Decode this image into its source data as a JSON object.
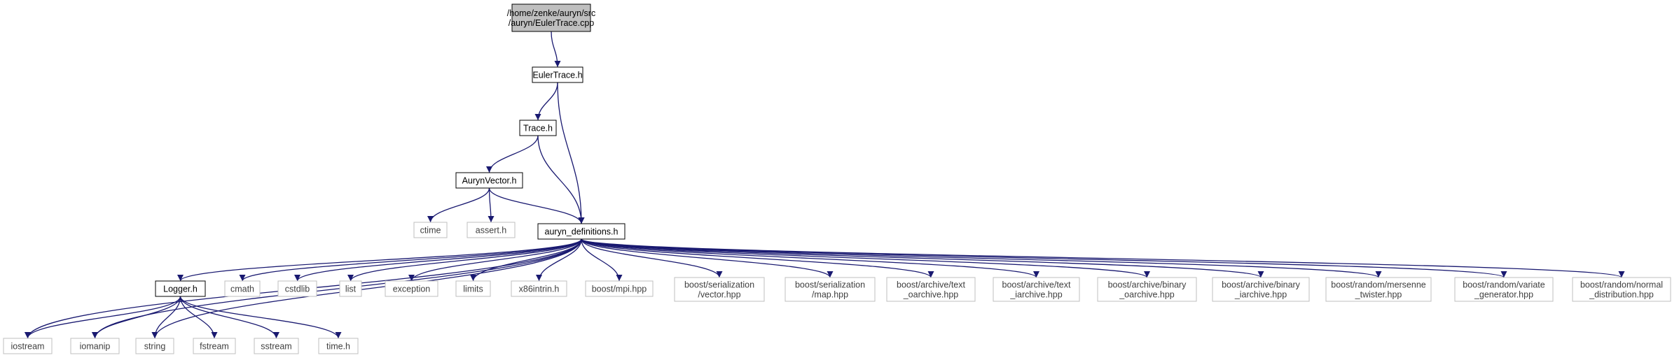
{
  "graph": {
    "colors": {
      "edge": "#191970",
      "highlight_fill": "#bfbfbf",
      "documented_border": "#000000",
      "external_border": "#bfbfbf",
      "external_text": "#404040",
      "text": "#000000"
    },
    "nodes": [
      {
        "id": "root",
        "lines": [
          "/home/zenke/auryn/src",
          "/auryn/EulerTrace.cpp"
        ],
        "kind": "highlight"
      },
      {
        "id": "eulertrace_h",
        "lines": [
          "EulerTrace.h"
        ],
        "kind": "documented"
      },
      {
        "id": "trace_h",
        "lines": [
          "Trace.h"
        ],
        "kind": "documented"
      },
      {
        "id": "aurynvector_h",
        "lines": [
          "AurynVector.h"
        ],
        "kind": "documented"
      },
      {
        "id": "ctime",
        "lines": [
          "ctime"
        ],
        "kind": "external"
      },
      {
        "id": "assert_h",
        "lines": [
          "assert.h"
        ],
        "kind": "external"
      },
      {
        "id": "auryn_definitions_h",
        "lines": [
          "auryn_definitions.h"
        ],
        "kind": "documented"
      },
      {
        "id": "logger_h",
        "lines": [
          "Logger.h"
        ],
        "kind": "documented"
      },
      {
        "id": "cmath",
        "lines": [
          "cmath"
        ],
        "kind": "external"
      },
      {
        "id": "cstdlib",
        "lines": [
          "cstdlib"
        ],
        "kind": "external"
      },
      {
        "id": "list",
        "lines": [
          "list"
        ],
        "kind": "external"
      },
      {
        "id": "exception",
        "lines": [
          "exception"
        ],
        "kind": "external"
      },
      {
        "id": "limits",
        "lines": [
          "limits"
        ],
        "kind": "external"
      },
      {
        "id": "x86intrin_h",
        "lines": [
          "x86intrin.h"
        ],
        "kind": "external"
      },
      {
        "id": "boost_mpi",
        "lines": [
          "boost/mpi.hpp"
        ],
        "kind": "external"
      },
      {
        "id": "boost_ser_vector",
        "lines": [
          "boost/serialization",
          "/vector.hpp"
        ],
        "kind": "external"
      },
      {
        "id": "boost_ser_map",
        "lines": [
          "boost/serialization",
          "/map.hpp"
        ],
        "kind": "external"
      },
      {
        "id": "boost_text_oarchive",
        "lines": [
          "boost/archive/text",
          "_oarchive.hpp"
        ],
        "kind": "external"
      },
      {
        "id": "boost_text_iarchive",
        "lines": [
          "boost/archive/text",
          "_iarchive.hpp"
        ],
        "kind": "external"
      },
      {
        "id": "boost_binary_oarchive",
        "lines": [
          "boost/archive/binary",
          "_oarchive.hpp"
        ],
        "kind": "external"
      },
      {
        "id": "boost_binary_iarchive",
        "lines": [
          "boost/archive/binary",
          "_iarchive.hpp"
        ],
        "kind": "external"
      },
      {
        "id": "boost_mersenne",
        "lines": [
          "boost/random/mersenne",
          "_twister.hpp"
        ],
        "kind": "external"
      },
      {
        "id": "boost_variate",
        "lines": [
          "boost/random/variate",
          "_generator.hpp"
        ],
        "kind": "external"
      },
      {
        "id": "boost_normal",
        "lines": [
          "boost/random/normal",
          "_distribution.hpp"
        ],
        "kind": "external"
      },
      {
        "id": "iostream",
        "lines": [
          "iostream"
        ],
        "kind": "external"
      },
      {
        "id": "iomanip",
        "lines": [
          "iomanip"
        ],
        "kind": "external"
      },
      {
        "id": "string",
        "lines": [
          "string"
        ],
        "kind": "external"
      },
      {
        "id": "fstream",
        "lines": [
          "fstream"
        ],
        "kind": "external"
      },
      {
        "id": "sstream",
        "lines": [
          "sstream"
        ],
        "kind": "external"
      },
      {
        "id": "time_h",
        "lines": [
          "time.h"
        ],
        "kind": "external"
      }
    ],
    "edges": [
      [
        "root",
        "eulertrace_h"
      ],
      [
        "eulertrace_h",
        "trace_h"
      ],
      [
        "eulertrace_h",
        "auryn_definitions_h"
      ],
      [
        "trace_h",
        "aurynvector_h"
      ],
      [
        "trace_h",
        "auryn_definitions_h"
      ],
      [
        "aurynvector_h",
        "ctime"
      ],
      [
        "aurynvector_h",
        "assert_h"
      ],
      [
        "aurynvector_h",
        "auryn_definitions_h"
      ],
      [
        "auryn_definitions_h",
        "iostream"
      ],
      [
        "auryn_definitions_h",
        "iomanip"
      ],
      [
        "auryn_definitions_h",
        "string"
      ],
      [
        "auryn_definitions_h",
        "logger_h"
      ],
      [
        "auryn_definitions_h",
        "cmath"
      ],
      [
        "auryn_definitions_h",
        "cstdlib"
      ],
      [
        "auryn_definitions_h",
        "list"
      ],
      [
        "auryn_definitions_h",
        "exception"
      ],
      [
        "auryn_definitions_h",
        "limits"
      ],
      [
        "auryn_definitions_h",
        "x86intrin_h"
      ],
      [
        "auryn_definitions_h",
        "boost_mpi"
      ],
      [
        "auryn_definitions_h",
        "boost_ser_vector"
      ],
      [
        "auryn_definitions_h",
        "boost_ser_map"
      ],
      [
        "auryn_definitions_h",
        "boost_text_oarchive"
      ],
      [
        "auryn_definitions_h",
        "boost_text_iarchive"
      ],
      [
        "auryn_definitions_h",
        "boost_binary_oarchive"
      ],
      [
        "auryn_definitions_h",
        "boost_binary_iarchive"
      ],
      [
        "auryn_definitions_h",
        "boost_mersenne"
      ],
      [
        "auryn_definitions_h",
        "boost_variate"
      ],
      [
        "auryn_definitions_h",
        "boost_normal"
      ],
      [
        "logger_h",
        "iostream"
      ],
      [
        "logger_h",
        "iomanip"
      ],
      [
        "logger_h",
        "string"
      ],
      [
        "logger_h",
        "fstream"
      ],
      [
        "logger_h",
        "sstream"
      ],
      [
        "logger_h",
        "time_h"
      ]
    ]
  }
}
